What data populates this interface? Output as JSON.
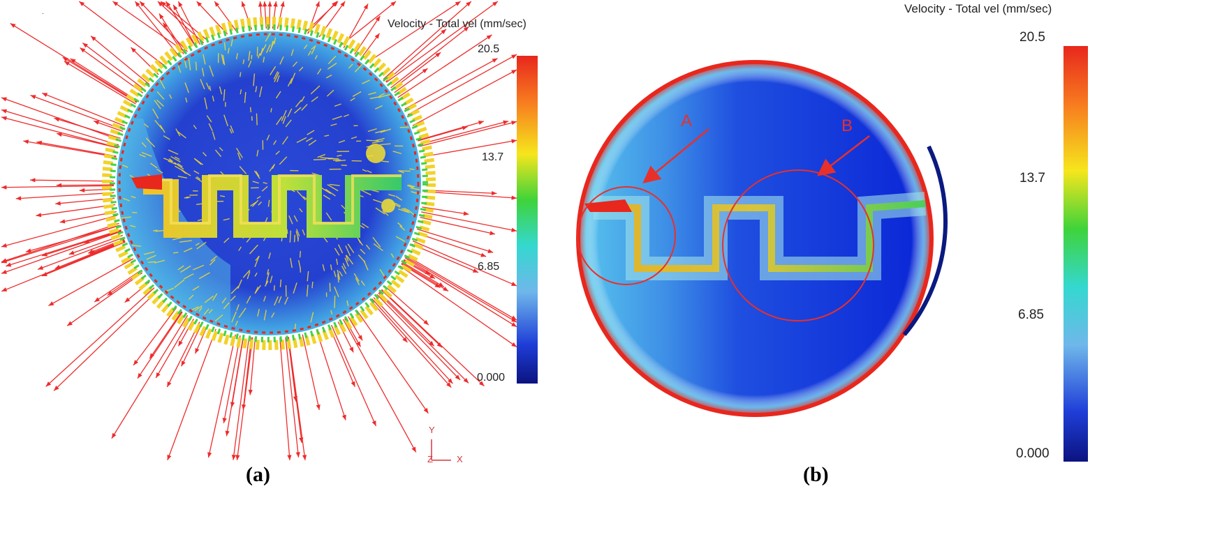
{
  "panels": [
    {
      "id": "a",
      "caption": "(a)",
      "legend": {
        "title": "Velocity - Total vel (mm/sec)",
        "ticks": [
          "20.5",
          "13.7",
          "6.85",
          "0.000"
        ],
        "max": 20.5,
        "min": 0.0
      },
      "axis_labels": {
        "y": "Y",
        "z": "Z",
        "x": "X"
      }
    },
    {
      "id": "b",
      "caption": "(b)",
      "legend": {
        "title": "Velocity - Total vel (mm/sec)",
        "ticks": [
          "20.5",
          "13.7",
          "6.85",
          "0.000"
        ],
        "max": 20.5,
        "min": 0.0
      },
      "annotations": [
        "A",
        "B"
      ]
    }
  ],
  "colors": {
    "colorbar_stops": [
      "#e8271d",
      "#f77b1f",
      "#f6e61c",
      "#3fd33a",
      "#34d8d0",
      "#6fb7ea",
      "#1f3ed8",
      "#0b1380"
    ],
    "annotation": "#e8302a",
    "vector_arrows": "#ee2b2b",
    "domain_base": "#1430d0",
    "streak": "#f4da2c"
  }
}
